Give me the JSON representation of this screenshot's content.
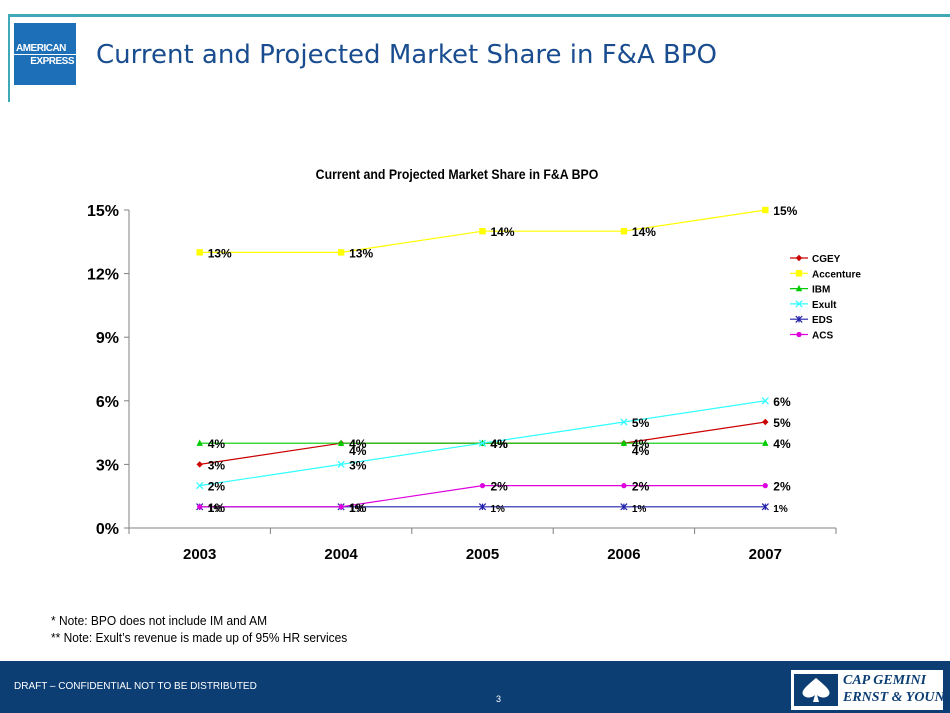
{
  "slide": {
    "title": "Current and Projected Market Share in F&A BPO",
    "logo_line1": "AMERICAN",
    "logo_line2": "EXPRESS",
    "notes": [
      "* Note: BPO does not include IM and AM",
      "** Note: Exult’s revenue is made up of 95% HR services"
    ],
    "footer_text": "DRAFT – CONFIDENTIAL NOT TO BE DISTRIBUTED",
    "page_number": "3",
    "partner_logo_line1": "CAP GEMINI",
    "partner_logo_line2": "ERNST & YOUNG"
  },
  "colors": {
    "accent": "#3fa9b8",
    "title": "#1a4d8f",
    "footer": "#0c3e74"
  },
  "chart_data": {
    "type": "line",
    "title": "Current and Projected Market Share in F&A BPO",
    "xlabel": "",
    "ylabel": "",
    "categories": [
      "2003",
      "2004",
      "2005",
      "2006",
      "2007"
    ],
    "ylim": [
      0,
      15
    ],
    "yticks": [
      0,
      3,
      6,
      9,
      12,
      15
    ],
    "ytick_labels": [
      "0%",
      "3%",
      "6%",
      "9%",
      "12%",
      "15%"
    ],
    "legend_position": "right",
    "grid": false,
    "series": [
      {
        "name": "CGEY",
        "color": "#cc0000",
        "marker": "diamond",
        "values": [
          3,
          4,
          4,
          4,
          5
        ],
        "labels": [
          "3%",
          "4%",
          "4%",
          "4%",
          "5%"
        ]
      },
      {
        "name": "Accenture",
        "color": "#ffff00",
        "marker": "square",
        "values": [
          13,
          13,
          14,
          14,
          15
        ],
        "labels": [
          "13%",
          "13%",
          "14%",
          "14%",
          "15%"
        ]
      },
      {
        "name": "IBM",
        "color": "#00cc00",
        "marker": "triangle",
        "values": [
          4,
          4,
          4,
          4,
          4
        ],
        "labels": [
          "4%",
          "4%",
          "4%",
          "4%",
          "4%"
        ]
      },
      {
        "name": "Exult",
        "color": "#33ffff",
        "marker": "x",
        "values": [
          2,
          3,
          4,
          5,
          6
        ],
        "labels": [
          "2%",
          "3%",
          "4%",
          "5%",
          "6%"
        ]
      },
      {
        "name": "EDS",
        "color": "#2222aa",
        "marker": "star",
        "values": [
          1,
          1,
          1,
          1,
          1
        ],
        "labels": [
          "1%",
          "1%",
          "1%",
          "1%",
          "1%"
        ]
      },
      {
        "name": "ACS",
        "color": "#dd00dd",
        "marker": "circle",
        "values": [
          1,
          1,
          2,
          2,
          2
        ],
        "labels": [
          "1%",
          "1%",
          "2%",
          "2%",
          "2%"
        ]
      }
    ]
  }
}
